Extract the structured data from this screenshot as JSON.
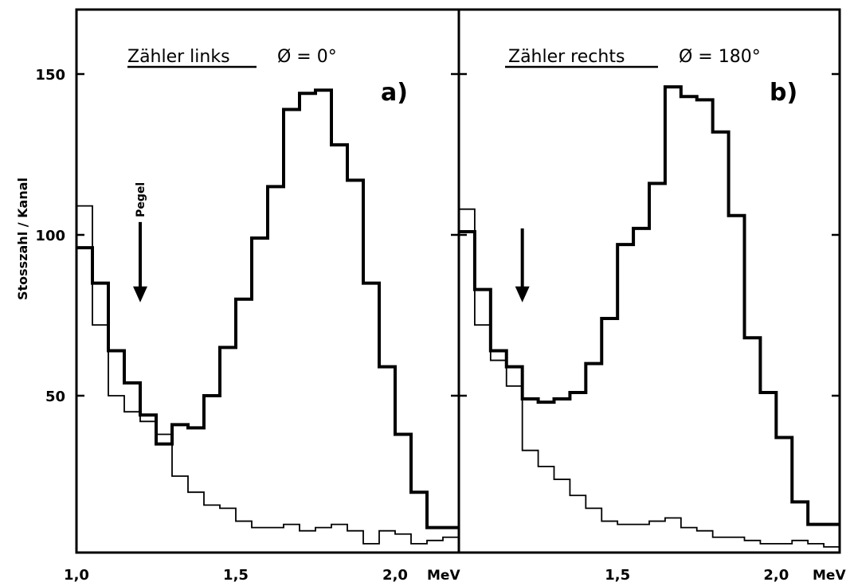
{
  "figure": {
    "ylabel": "Stosszahl / Kanal",
    "unit": "MeV"
  },
  "chart_data": [
    {
      "type": "line",
      "step": true,
      "panel_letter": "a)",
      "title": "Zähler links",
      "angle_label": "Ø = 0°",
      "xlim": [
        1.0,
        2.2
      ],
      "ylim": [
        0,
        170
      ],
      "yticks": [
        50,
        100,
        150
      ],
      "xticks": [
        1.0,
        1.5,
        2.0
      ],
      "xtick_labels": [
        "1,0",
        "1,5",
        "2,0"
      ],
      "bin_width": 0.05,
      "series": [
        {
          "weight": "thick",
          "x": [
            1.0,
            1.05,
            1.1,
            1.15,
            1.2,
            1.25,
            1.3,
            1.35,
            1.4,
            1.45,
            1.5,
            1.55,
            1.6,
            1.65,
            1.7,
            1.75,
            1.8,
            1.85,
            1.9,
            1.95,
            2.0,
            2.05,
            2.1,
            2.15
          ],
          "values": [
            96,
            85,
            64,
            54,
            44,
            35,
            41,
            40,
            50,
            65,
            80,
            99,
            115,
            139,
            144,
            145,
            128,
            117,
            85,
            59,
            38,
            20,
            9,
            9
          ]
        },
        {
          "weight": "thin",
          "x": [
            1.0,
            1.05,
            1.1,
            1.15,
            1.2,
            1.25,
            1.3,
            1.35,
            1.4,
            1.45,
            1.5,
            1.55,
            1.6,
            1.65,
            1.7,
            1.75,
            1.8,
            1.85,
            1.9,
            1.95,
            2.0,
            2.05,
            2.1,
            2.15
          ],
          "values": [
            109,
            72,
            50,
            45,
            42,
            38,
            25,
            20,
            16,
            15,
            11,
            9,
            9,
            10,
            8,
            9,
            10,
            8,
            4,
            8,
            7,
            4,
            5,
            6
          ]
        }
      ],
      "annotations": [
        {
          "text": "Pegel",
          "type": "arrow",
          "x": 1.2,
          "y_from": 104,
          "y_to": 80
        }
      ]
    },
    {
      "type": "line",
      "step": true,
      "panel_letter": "b)",
      "title": "Zähler rechts",
      "angle_label": "Ø = 180°",
      "xlim": [
        1.0,
        2.2
      ],
      "ylim": [
        0,
        170
      ],
      "yticks": [
        50,
        100,
        150
      ],
      "xticks": [
        1.5,
        2.0
      ],
      "xtick_labels": [
        "1,5",
        "2,0"
      ],
      "bin_width": 0.05,
      "series": [
        {
          "weight": "thick",
          "x": [
            1.0,
            1.05,
            1.1,
            1.15,
            1.2,
            1.25,
            1.3,
            1.35,
            1.4,
            1.45,
            1.5,
            1.55,
            1.6,
            1.65,
            1.7,
            1.75,
            1.8,
            1.85,
            1.9,
            1.95,
            2.0,
            2.05,
            2.1,
            2.15
          ],
          "values": [
            101,
            83,
            64,
            59,
            49,
            48,
            49,
            51,
            60,
            74,
            97,
            102,
            116,
            146,
            143,
            142,
            132,
            106,
            68,
            51,
            37,
            17,
            10,
            10
          ]
        },
        {
          "weight": "thin",
          "x": [
            1.0,
            1.05,
            1.1,
            1.15,
            1.2,
            1.25,
            1.3,
            1.35,
            1.4,
            1.45,
            1.5,
            1.55,
            1.6,
            1.65,
            1.7,
            1.75,
            1.8,
            1.85,
            1.9,
            1.95,
            2.0,
            2.05,
            2.1,
            2.15
          ],
          "values": [
            108,
            72,
            61,
            53,
            33,
            28,
            24,
            19,
            15,
            11,
            10,
            10,
            11,
            12,
            9,
            8,
            6,
            6,
            5,
            4,
            4,
            5,
            4,
            3
          ]
        }
      ],
      "annotations": [
        {
          "type": "arrow",
          "x": 1.2,
          "y_from": 102,
          "y_to": 80
        }
      ]
    }
  ]
}
